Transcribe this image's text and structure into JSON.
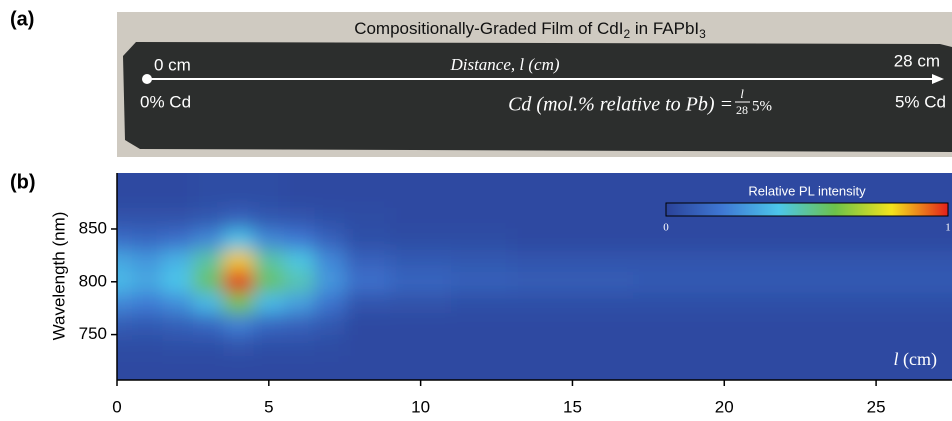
{
  "panel_a": {
    "label": "(a)",
    "title": [
      "Compositionally-Graded Film of CdI",
      "2",
      " in FAPbI",
      "3"
    ],
    "start_distance": "0 cm",
    "end_distance": "28 cm",
    "start_cd": "0% Cd",
    "end_cd": "5% Cd",
    "axis_label": "Distance, l (cm)",
    "formula": {
      "lhs": "Cd (mol.% relative to Pb) =",
      "numerator": "l",
      "denominator": "28",
      "rhs": "5%"
    }
  },
  "panel_b": {
    "label": "(b)"
  },
  "chart_data": {
    "type": "heatmap",
    "ylabel": "Wavelength (nm)",
    "x_annotation": [
      "l",
      "(cm)"
    ],
    "xlim": [
      0,
      27.5
    ],
    "xticks": [
      0,
      5,
      10,
      15,
      20,
      25
    ],
    "ylim": [
      707,
      903
    ],
    "yticks": [
      750,
      800,
      850
    ],
    "x": [
      0,
      1,
      2,
      3,
      4,
      5,
      6,
      7,
      8,
      10,
      12,
      14,
      16,
      18,
      20,
      22,
      24,
      26
    ],
    "y": [
      880,
      860,
      840,
      820,
      800,
      780,
      760,
      740,
      720
    ],
    "z": [
      [
        0.03,
        0.03,
        0.03,
        0.04,
        0.04,
        0.04,
        0.03,
        0.03,
        0.03,
        0.03,
        0.03,
        0.03,
        0.03,
        0.03,
        0.03,
        0.03,
        0.03,
        0.03
      ],
      [
        0.06,
        0.06,
        0.06,
        0.08,
        0.12,
        0.08,
        0.07,
        0.05,
        0.04,
        0.03,
        0.03,
        0.03,
        0.03,
        0.03,
        0.03,
        0.03,
        0.03,
        0.03
      ],
      [
        0.16,
        0.14,
        0.17,
        0.24,
        0.39,
        0.24,
        0.2,
        0.12,
        0.05,
        0.04,
        0.04,
        0.03,
        0.03,
        0.03,
        0.03,
        0.03,
        0.03,
        0.03
      ],
      [
        0.32,
        0.28,
        0.35,
        0.49,
        0.83,
        0.49,
        0.41,
        0.24,
        0.12,
        0.09,
        0.08,
        0.07,
        0.07,
        0.07,
        0.07,
        0.07,
        0.07,
        0.07
      ],
      [
        0.37,
        0.32,
        0.4,
        0.57,
        1.0,
        0.57,
        0.47,
        0.28,
        0.17,
        0.13,
        0.11,
        0.1,
        0.1,
        0.09,
        0.09,
        0.09,
        0.09,
        0.09
      ],
      [
        0.24,
        0.21,
        0.26,
        0.37,
        0.61,
        0.37,
        0.3,
        0.18,
        0.07,
        0.06,
        0.05,
        0.05,
        0.05,
        0.05,
        0.05,
        0.05,
        0.05,
        0.05
      ],
      [
        0.1,
        0.09,
        0.11,
        0.14,
        0.22,
        0.14,
        0.12,
        0.08,
        0.03,
        0.03,
        0.03,
        0.03,
        0.03,
        0.03,
        0.03,
        0.03,
        0.03,
        0.03
      ],
      [
        0.04,
        0.04,
        0.05,
        0.05,
        0.07,
        0.05,
        0.05,
        0.04,
        0.03,
        0.03,
        0.03,
        0.03,
        0.03,
        0.03,
        0.03,
        0.03,
        0.03,
        0.03
      ],
      [
        0.03,
        0.03,
        0.03,
        0.03,
        0.03,
        0.03,
        0.03,
        0.03,
        0.03,
        0.03,
        0.03,
        0.03,
        0.03,
        0.03,
        0.03,
        0.03,
        0.03,
        0.03
      ]
    ],
    "colorscale": [
      "#2a4298",
      "#3f78d4",
      "#4cc6ea",
      "#6cc24a",
      "#f3e31c",
      "#e3201b"
    ],
    "colorbar": {
      "label": "Relative PL intensity",
      "ticks": [
        0,
        1
      ]
    }
  }
}
